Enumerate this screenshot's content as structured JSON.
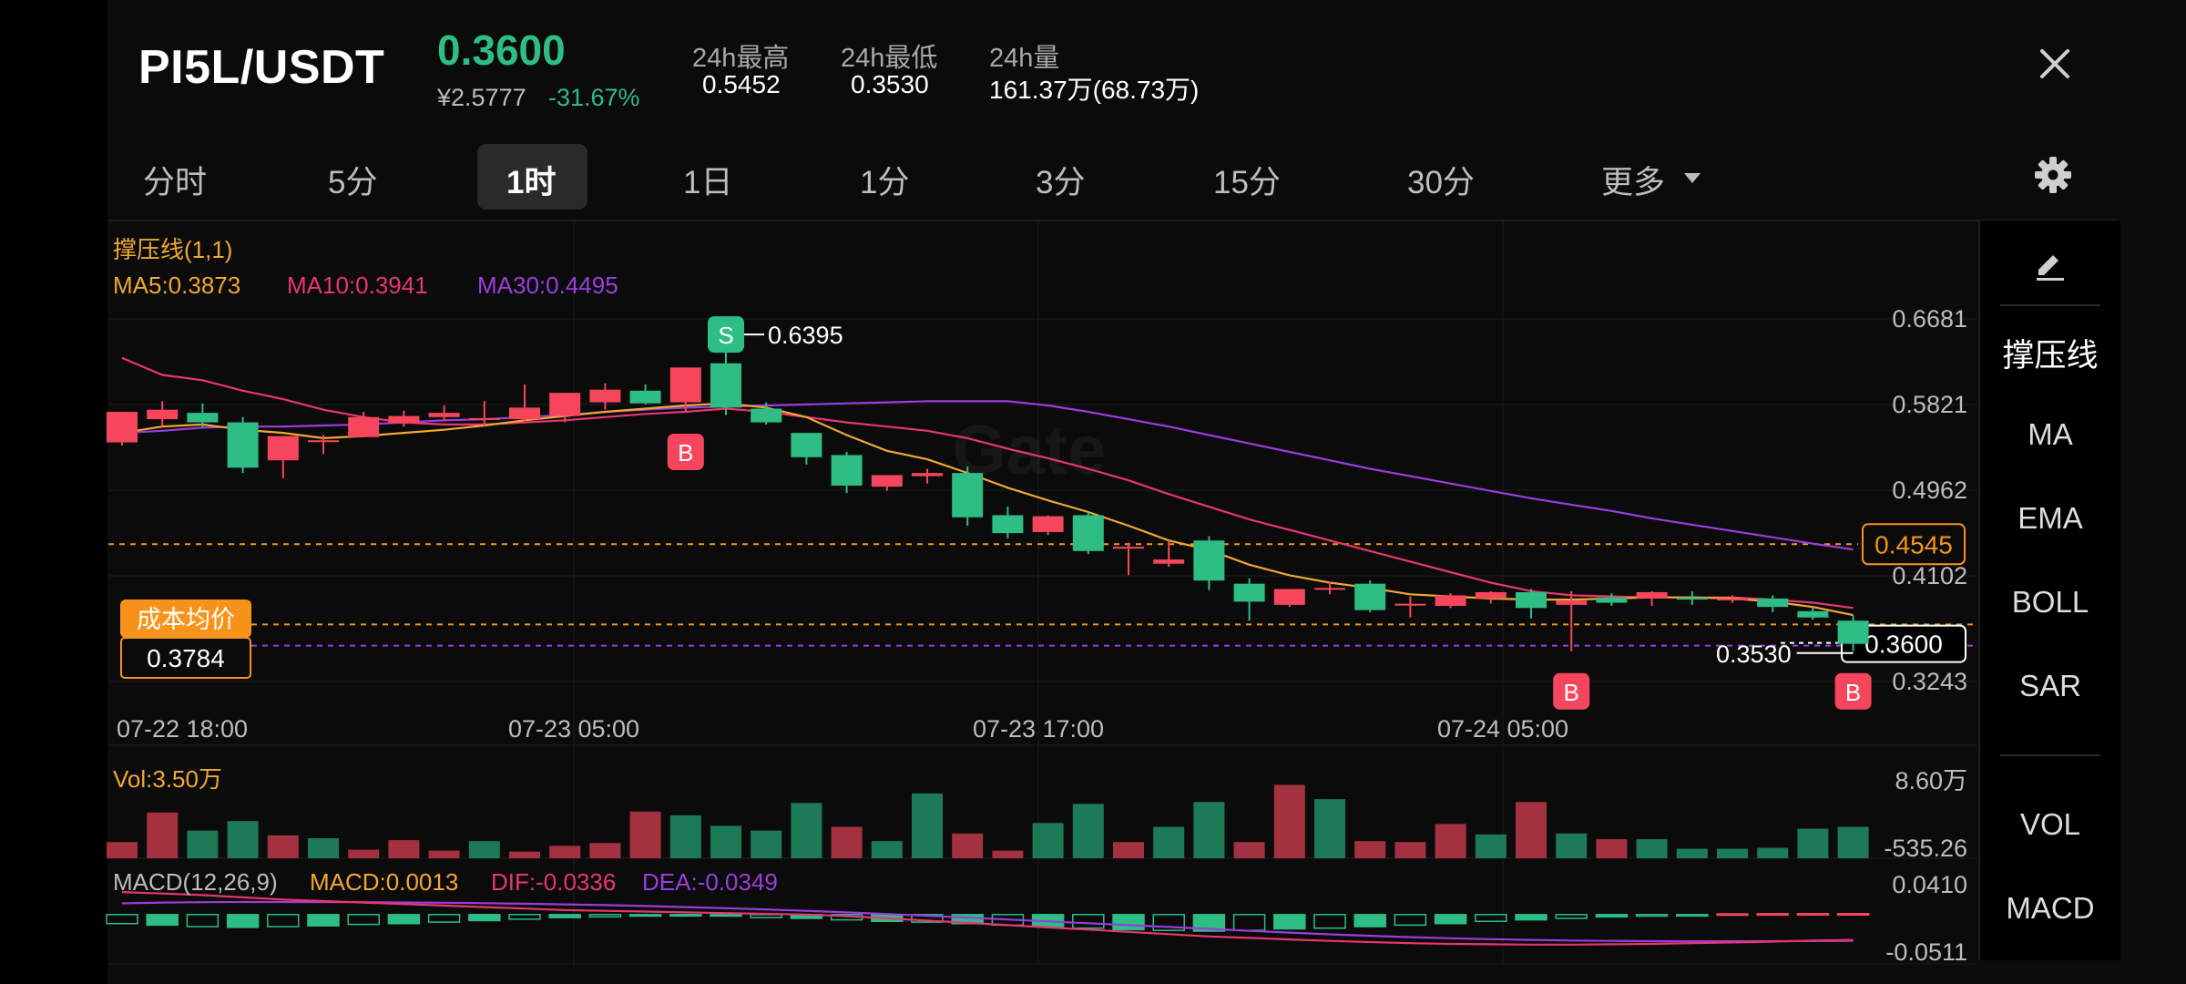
{
  "header": {
    "pair": "PI5L/USDT",
    "last_price": "0.3600",
    "cny_price": "¥2.5777",
    "change_pct": "-31.67%",
    "stats": [
      {
        "label": "24h最高",
        "value": "0.5452"
      },
      {
        "label": "24h最低",
        "value": "0.3530"
      },
      {
        "label": "24h量",
        "value": "161.37万(68.73万)"
      }
    ]
  },
  "tabs": [
    {
      "label": "分时",
      "active": false
    },
    {
      "label": "5分",
      "active": false
    },
    {
      "label": "1时",
      "active": true
    },
    {
      "label": "1日",
      "active": false
    },
    {
      "label": "1分",
      "active": false
    },
    {
      "label": "3分",
      "active": false
    },
    {
      "label": "15分",
      "active": false
    },
    {
      "label": "30分",
      "active": false
    },
    {
      "label": "更多",
      "active": false
    }
  ],
  "sidebar": {
    "items": [
      "撑压线",
      "MA",
      "EMA",
      "BOLL",
      "SAR",
      "VOL",
      "MACD"
    ],
    "active": "撑压线"
  },
  "colors": {
    "up": "#f6465d",
    "down": "#2dbd85",
    "ma5": "#f0a830",
    "ma10": "#e8366e",
    "ma30": "#9b3ce0",
    "accent": "#f7931a"
  },
  "icons": [
    "close-icon",
    "chevron-down-icon",
    "gear-icon",
    "pencil-icon"
  ],
  "chart_data": {
    "type": "candlestick",
    "watermark": "Gate",
    "indicator_label": "撑压线(1,1)",
    "ma_legend": [
      {
        "name": "MA5",
        "value": "0.3873"
      },
      {
        "name": "MA10",
        "value": "0.3941"
      },
      {
        "name": "MA30",
        "value": "0.4495"
      }
    ],
    "y_ticks": [
      "0.6681",
      "0.5821",
      "0.4962",
      "0.4102",
      "0.3243"
    ],
    "ylim": [
      0.3243,
      0.6681
    ],
    "x_ticks": [
      "07-22 18:00",
      "07-23 05:00",
      "07-23 17:00",
      "07-24 05:00"
    ],
    "current_price": "0.3600",
    "high_marker": "0.6395",
    "low_marker": "0.3530",
    "resistance_line": "0.4545",
    "cost_label": "成本均价",
    "cost_value": "0.3784",
    "candles": [
      {
        "o": 0.551,
        "h": 0.58,
        "c": 0.58,
        "l": 0.548
      },
      {
        "o": 0.573,
        "h": 0.59,
        "c": 0.582,
        "l": 0.567
      },
      {
        "o": 0.579,
        "h": 0.588,
        "c": 0.57,
        "l": 0.565
      },
      {
        "o": 0.57,
        "h": 0.575,
        "c": 0.527,
        "l": 0.522
      },
      {
        "o": 0.534,
        "h": 0.557,
        "c": 0.557,
        "l": 0.517
      },
      {
        "o": 0.553,
        "h": 0.558,
        "c": 0.553,
        "l": 0.54
      },
      {
        "o": 0.556,
        "h": 0.58,
        "c": 0.575,
        "l": 0.556
      },
      {
        "o": 0.569,
        "h": 0.581,
        "c": 0.576,
        "l": 0.566
      },
      {
        "o": 0.575,
        "h": 0.586,
        "c": 0.579,
        "l": 0.571
      },
      {
        "o": 0.574,
        "h": 0.59,
        "c": 0.574,
        "l": 0.566
      },
      {
        "o": 0.573,
        "h": 0.606,
        "c": 0.584,
        "l": 0.57
      },
      {
        "o": 0.576,
        "h": 0.598,
        "c": 0.598,
        "l": 0.57
      },
      {
        "o": 0.589,
        "h": 0.607,
        "c": 0.601,
        "l": 0.582
      },
      {
        "o": 0.6,
        "h": 0.606,
        "c": 0.588,
        "l": 0.587
      },
      {
        "o": 0.589,
        "h": 0.622,
        "c": 0.622,
        "l": 0.58
      },
      {
        "o": 0.626,
        "h": 0.6395,
        "c": 0.584,
        "l": 0.577
      },
      {
        "o": 0.583,
        "h": 0.589,
        "c": 0.57,
        "l": 0.568
      },
      {
        "o": 0.56,
        "h": 0.56,
        "c": 0.537,
        "l": 0.53
      },
      {
        "o": 0.539,
        "h": 0.542,
        "c": 0.51,
        "l": 0.503
      },
      {
        "o": 0.509,
        "h": 0.52,
        "c": 0.52,
        "l": 0.505
      },
      {
        "o": 0.519,
        "h": 0.526,
        "c": 0.522,
        "l": 0.512
      },
      {
        "o": 0.522,
        "h": 0.528,
        "c": 0.48,
        "l": 0.472
      },
      {
        "o": 0.482,
        "h": 0.49,
        "c": 0.465,
        "l": 0.46
      },
      {
        "o": 0.466,
        "h": 0.482,
        "c": 0.481,
        "l": 0.463
      },
      {
        "o": 0.482,
        "h": 0.485,
        "c": 0.448,
        "l": 0.445
      },
      {
        "o": 0.452,
        "h": 0.456,
        "c": 0.452,
        "l": 0.425
      },
      {
        "o": 0.436,
        "h": 0.458,
        "c": 0.44,
        "l": 0.433
      },
      {
        "o": 0.458,
        "h": 0.462,
        "c": 0.42,
        "l": 0.411
      },
      {
        "o": 0.417,
        "h": 0.422,
        "c": 0.4,
        "l": 0.382
      },
      {
        "o": 0.397,
        "h": 0.412,
        "c": 0.412,
        "l": 0.395
      },
      {
        "o": 0.413,
        "h": 0.419,
        "c": 0.413,
        "l": 0.407
      },
      {
        "o": 0.417,
        "h": 0.42,
        "c": 0.392,
        "l": 0.39
      },
      {
        "o": 0.398,
        "h": 0.405,
        "c": 0.398,
        "l": 0.385
      },
      {
        "o": 0.396,
        "h": 0.408,
        "c": 0.406,
        "l": 0.394
      },
      {
        "o": 0.403,
        "h": 0.41,
        "c": 0.409,
        "l": 0.398
      },
      {
        "o": 0.409,
        "h": 0.412,
        "c": 0.394,
        "l": 0.384
      },
      {
        "o": 0.397,
        "h": 0.41,
        "c": 0.401,
        "l": 0.353
      },
      {
        "o": 0.404,
        "h": 0.408,
        "c": 0.399,
        "l": 0.396
      },
      {
        "o": 0.403,
        "h": 0.41,
        "c": 0.409,
        "l": 0.396
      },
      {
        "o": 0.404,
        "h": 0.41,
        "c": 0.402,
        "l": 0.397
      },
      {
        "o": 0.402,
        "h": 0.406,
        "c": 0.403,
        "l": 0.399
      },
      {
        "o": 0.403,
        "h": 0.406,
        "c": 0.395,
        "l": 0.39
      },
      {
        "o": 0.391,
        "h": 0.395,
        "c": 0.385,
        "l": 0.383
      },
      {
        "o": 0.382,
        "h": 0.387,
        "c": 0.36,
        "l": 0.353
      }
    ],
    "ma5": [
      0.56,
      0.566,
      0.568,
      0.563,
      0.56,
      0.555,
      0.557,
      0.56,
      0.563,
      0.567,
      0.572,
      0.576,
      0.58,
      0.583,
      0.586,
      0.588,
      0.584,
      0.575,
      0.558,
      0.543,
      0.535,
      0.522,
      0.508,
      0.496,
      0.485,
      0.472,
      0.458,
      0.449,
      0.435,
      0.425,
      0.418,
      0.413,
      0.407,
      0.405,
      0.403,
      0.402,
      0.402,
      0.403,
      0.404,
      0.404,
      0.403,
      0.4,
      0.395,
      0.3873
    ],
    "ma10": [
      0.631,
      0.615,
      0.61,
      0.6,
      0.592,
      0.582,
      0.575,
      0.57,
      0.568,
      0.568,
      0.57,
      0.572,
      0.575,
      0.578,
      0.58,
      0.583,
      0.58,
      0.575,
      0.57,
      0.566,
      0.562,
      0.555,
      0.545,
      0.536,
      0.526,
      0.515,
      0.502,
      0.49,
      0.478,
      0.468,
      0.458,
      0.448,
      0.438,
      0.428,
      0.418,
      0.41,
      0.406,
      0.405,
      0.404,
      0.404,
      0.404,
      0.402,
      0.399,
      0.3941
    ],
    "ma30": [
      0.56,
      0.562,
      0.565,
      0.566,
      0.566,
      0.567,
      0.568,
      0.57,
      0.572,
      0.573,
      0.575,
      0.577,
      0.58,
      0.582,
      0.584,
      0.585,
      0.586,
      0.587,
      0.588,
      0.589,
      0.59,
      0.59,
      0.59,
      0.586,
      0.58,
      0.573,
      0.566,
      0.558,
      0.55,
      0.542,
      0.534,
      0.526,
      0.519,
      0.512,
      0.505,
      0.498,
      0.492,
      0.486,
      0.479,
      0.473,
      0.467,
      0.461,
      0.455,
      0.4495
    ],
    "markers": [
      {
        "type": "S",
        "index": 15,
        "price": 0.6395,
        "label": "0.6395"
      },
      {
        "type": "B",
        "index": 14,
        "price": 0.58
      },
      {
        "type": "B",
        "index": 36,
        "price": 0.353
      },
      {
        "type": "B",
        "index": 43,
        "price": 0.353,
        "label": "0.3530"
      }
    ],
    "volume": {
      "label": "Vol:3.50万",
      "y_ticks": [
        "8.60万",
        "-535.26"
      ],
      "ylim": [
        -535.26,
        86000
      ],
      "values": [
        17000,
        48000,
        29000,
        39000,
        24000,
        21000,
        9000,
        19000,
        8000,
        18000,
        7000,
        13000,
        16000,
        49000,
        45000,
        34000,
        29000,
        58000,
        33000,
        18000,
        68000,
        26000,
        8000,
        37000,
        57000,
        17000,
        33000,
        59000,
        17000,
        77000,
        62000,
        18000,
        17000,
        36000,
        25000,
        59000,
        26000,
        20000,
        20000,
        10000,
        10000,
        11000,
        31000,
        33000
      ],
      "up": [
        true,
        true,
        false,
        false,
        true,
        false,
        true,
        true,
        true,
        false,
        true,
        true,
        true,
        true,
        false,
        false,
        false,
        false,
        true,
        false,
        false,
        true,
        true,
        false,
        false,
        true,
        false,
        false,
        true,
        true,
        false,
        true,
        true,
        true,
        false,
        true,
        false,
        true,
        false,
        false,
        false,
        false,
        false,
        false
      ]
    },
    "macd": {
      "params": "MACD(12,26,9)",
      "macd_value": "MACD:0.0013",
      "dif_value": "DIF:-0.0336",
      "dea_value": "DEA:-0.0349",
      "y_ticks": [
        "0.0410",
        "-0.0511"
      ],
      "ylim": [
        -0.0511,
        0.041
      ],
      "hist": [
        -0.012,
        -0.014,
        -0.016,
        -0.017,
        -0.016,
        -0.015,
        -0.013,
        -0.012,
        -0.01,
        -0.008,
        -0.006,
        -0.004,
        -0.003,
        -0.002,
        -0.001,
        -0.002,
        -0.004,
        -0.005,
        -0.007,
        -0.009,
        -0.01,
        -0.012,
        -0.014,
        -0.016,
        -0.018,
        -0.02,
        -0.021,
        -0.022,
        -0.021,
        -0.019,
        -0.018,
        -0.016,
        -0.014,
        -0.012,
        -0.009,
        -0.007,
        -0.005,
        -0.003,
        -0.002,
        -0.001,
        0.001,
        0.0012,
        0.0013,
        0.0013
      ],
      "dif": [
        0.03,
        0.028,
        0.026,
        0.023,
        0.02,
        0.018,
        0.016,
        0.014,
        0.012,
        0.01,
        0.008,
        0.006,
        0.005,
        0.004,
        0.003,
        0.002,
        0.001,
        0.0,
        -0.002,
        -0.005,
        -0.008,
        -0.011,
        -0.014,
        -0.017,
        -0.02,
        -0.023,
        -0.026,
        -0.029,
        -0.031,
        -0.033,
        -0.035,
        -0.0365,
        -0.038,
        -0.039,
        -0.0395,
        -0.04,
        -0.04,
        -0.0395,
        -0.039,
        -0.038,
        -0.037,
        -0.036,
        -0.0345,
        -0.0336
      ],
      "dea": [
        0.015,
        0.016,
        0.0165,
        0.0168,
        0.0168,
        0.0167,
        0.0165,
        0.0162,
        0.0158,
        0.0152,
        0.0145,
        0.0136,
        0.0126,
        0.0114,
        0.01,
        0.0085,
        0.0068,
        0.005,
        0.003,
        0.0008,
        -0.0015,
        -0.004,
        -0.0065,
        -0.009,
        -0.0115,
        -0.014,
        -0.0165,
        -0.019,
        -0.0215,
        -0.024,
        -0.0262,
        -0.0282,
        -0.03,
        -0.0315,
        -0.0327,
        -0.0337,
        -0.0345,
        -0.035,
        -0.0353,
        -0.0355,
        -0.0355,
        -0.0354,
        -0.0352,
        -0.0349
      ]
    }
  }
}
